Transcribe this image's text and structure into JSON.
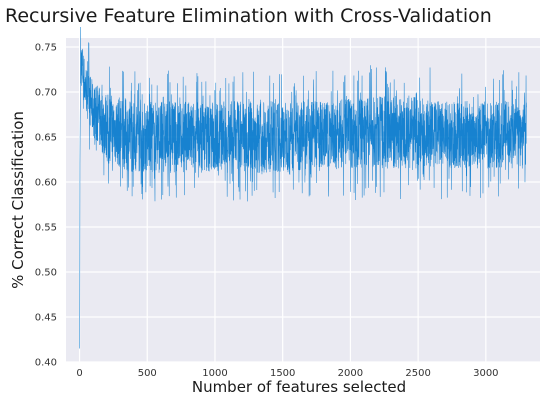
{
  "chart_data": {
    "type": "line",
    "title": "Recursive Feature Elimination with Cross-Validation",
    "xlabel": "Number of features selected",
    "ylabel": "% Correct Classification",
    "xlim": [
      -100,
      3400
    ],
    "ylim": [
      0.4,
      0.76
    ],
    "xticks": [
      0,
      500,
      1000,
      1500,
      2000,
      2500,
      3000
    ],
    "yticks": [
      0.4,
      0.45,
      0.5,
      0.55,
      0.6,
      0.65,
      0.7,
      0.75
    ],
    "ytick_labels": [
      "0.40",
      "0.45",
      "0.50",
      "0.55",
      "0.60",
      "0.65",
      "0.70",
      "0.75"
    ],
    "grid": true,
    "colors": {
      "line": "#0077cc",
      "plot_bg": "#eaeaf2",
      "grid": "#ffffff"
    },
    "series": [
      {
        "name": "",
        "x": [
          1,
          3,
          6,
          10,
          15,
          20,
          30,
          40,
          60,
          80,
          100,
          150,
          200,
          300,
          400,
          500,
          700,
          900,
          1100,
          1300,
          1500,
          1700,
          1900,
          2100,
          2300,
          2500,
          2700,
          2900,
          3100,
          3300
        ],
        "values": [
          0.415,
          0.62,
          0.7,
          0.745,
          0.755,
          0.74,
          0.73,
          0.715,
          0.7,
          0.69,
          0.68,
          0.67,
          0.665,
          0.66,
          0.655,
          0.655,
          0.65,
          0.65,
          0.65,
          0.65,
          0.65,
          0.655,
          0.655,
          0.655,
          0.655,
          0.655,
          0.655,
          0.655,
          0.655,
          0.655
        ],
        "upper": [
          0.415,
          0.62,
          0.72,
          0.76,
          0.76,
          0.755,
          0.745,
          0.735,
          0.725,
          0.72,
          0.71,
          0.705,
          0.7,
          0.695,
          0.69,
          0.69,
          0.69,
          0.69,
          0.69,
          0.69,
          0.69,
          0.69,
          0.69,
          0.695,
          0.695,
          0.695,
          0.69,
          0.69,
          0.69,
          0.69
        ],
        "lower": [
          0.415,
          0.62,
          0.68,
          0.705,
          0.705,
          0.7,
          0.69,
          0.68,
          0.67,
          0.66,
          0.65,
          0.635,
          0.625,
          0.615,
          0.61,
          0.61,
          0.61,
          0.61,
          0.61,
          0.61,
          0.61,
          0.615,
          0.615,
          0.615,
          0.615,
          0.615,
          0.615,
          0.615,
          0.615,
          0.615
        ]
      }
    ]
  }
}
